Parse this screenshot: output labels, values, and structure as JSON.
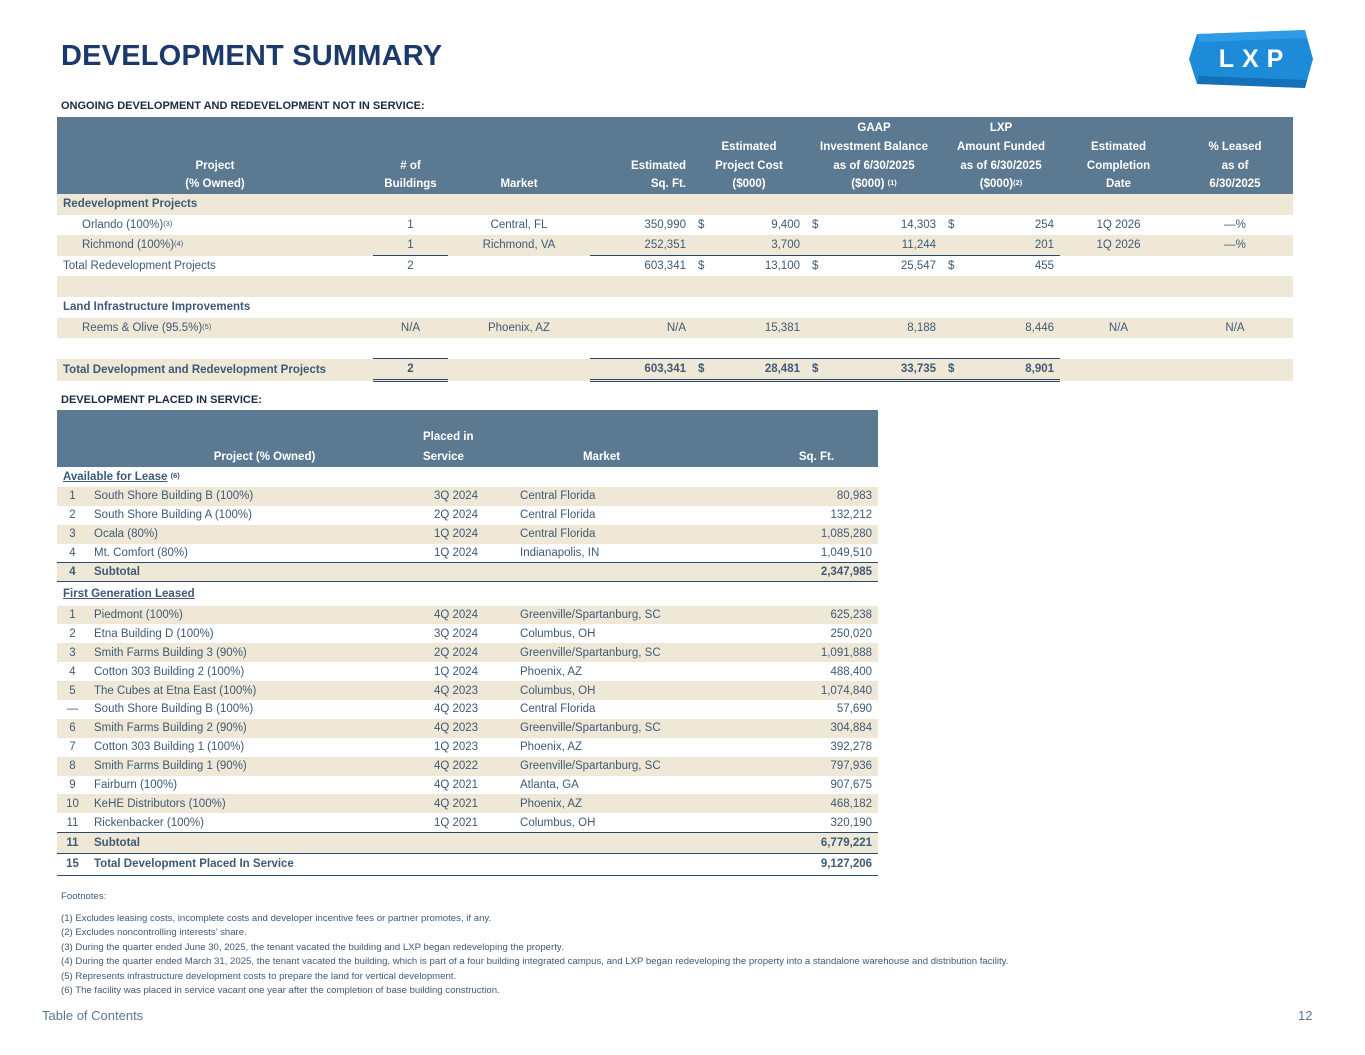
{
  "page": {
    "title": "DEVELOPMENT SUMMARY",
    "logo_text": "LXP",
    "brand_color": "#1e8bd8",
    "header_color": "#5b7a91",
    "row_shade": "#efe8d6"
  },
  "ongoing": {
    "section_label": "ONGOING DEVELOPMENT AND REDEVELOPMENT NOT IN SERVICE:",
    "headers": {
      "project_l1": "Project",
      "project_l2": "(% Owned)",
      "buildings_l1": "# of",
      "buildings_l2": "Buildings",
      "market": "Market",
      "sqft_l1": "Estimated",
      "sqft_l2": "Sq. Ft.",
      "cost_l1": "Estimated",
      "cost_l2": "Project Cost",
      "cost_l3": "($000)",
      "gaap_l1": "GAAP",
      "gaap_l2": "Investment Balance",
      "gaap_l3": "as of 6/30/2025",
      "gaap_l4": "($000)",
      "gaap_sup": "(1)",
      "lxp_l1": "LXP",
      "lxp_l2": "Amount Funded",
      "lxp_l3": "as of 6/30/2025",
      "lxp_l4": "($000)",
      "lxp_sup": "(2)",
      "completion_l1": "Estimated",
      "completion_l2": "Completion",
      "completion_l3": "Date",
      "leased_l1": "% Leased",
      "leased_l2": "as of",
      "leased_l3": "6/30/2025"
    },
    "redevelopment_label": "Redevelopment Projects",
    "rows": [
      {
        "project": "Orlando (100%)",
        "sup": "(3)",
        "buildings": "1",
        "market": "Central, FL",
        "sqft": "350,990",
        "cost_cur": "$",
        "cost": "9,400",
        "gaap_cur": "$",
        "gaap": "14,303",
        "lxp_cur": "$",
        "lxp": "254",
        "completion": "1Q 2026",
        "leased": "—%"
      },
      {
        "project": "Richmond (100%)",
        "sup": "(4)",
        "buildings": "1",
        "market": "Richmond, VA",
        "sqft": "252,351",
        "cost_cur": "",
        "cost": "3,700",
        "gaap_cur": "",
        "gaap": "11,244",
        "lxp_cur": "",
        "lxp": "201",
        "completion": "1Q 2026",
        "leased": "—%"
      }
    ],
    "total_redev": {
      "label": "Total Redevelopment Projects",
      "buildings": "2",
      "sqft": "603,341",
      "cost_cur": "$",
      "cost": "13,100",
      "gaap_cur": "$",
      "gaap": "25,547",
      "lxp_cur": "$",
      "lxp": "455"
    },
    "land_label": "Land Infrastructure Improvements",
    "land_row": {
      "project": "Reems & Olive (95.5%)",
      "sup": "(5)",
      "buildings": "N/A",
      "market": "Phoenix, AZ",
      "sqft": "N/A",
      "cost": "15,381",
      "gaap": "8,188",
      "lxp": "8,446",
      "completion": "N/A",
      "leased": "N/A"
    },
    "grand_total": {
      "label": "Total Development and Redevelopment Projects",
      "buildings": "2",
      "sqft": "603,341",
      "cost_cur": "$",
      "cost": "28,481",
      "gaap_cur": "$",
      "gaap": "33,735",
      "lxp_cur": "$",
      "lxp": "8,901"
    }
  },
  "placed": {
    "section_label": "DEVELOPMENT PLACED IN SERVICE:",
    "headers": {
      "project": "Project (% Owned)",
      "placed_l1": "Placed in",
      "placed_l2": "Service",
      "market": "Market",
      "sqft": "Sq. Ft."
    },
    "available_label": "Available for Lease",
    "available_sup": "(6)",
    "available_rows": [
      {
        "n": "1",
        "project": "South Shore Building B (100%)",
        "placed": "3Q 2024",
        "market": "Central Florida",
        "sqft": "80,983"
      },
      {
        "n": "2",
        "project": "South Shore Building A (100%)",
        "placed": "2Q 2024",
        "market": "Central Florida",
        "sqft": "132,212"
      },
      {
        "n": "3",
        "project": "Ocala (80%)",
        "placed": "1Q 2024",
        "market": "Central Florida",
        "sqft": "1,085,280"
      },
      {
        "n": "4",
        "project": "Mt. Comfort (80%)",
        "placed": "1Q 2024",
        "market": "Indianapolis, IN",
        "sqft": "1,049,510"
      }
    ],
    "available_subtotal": {
      "n": "4",
      "label": "Subtotal",
      "sqft": "2,347,985"
    },
    "first_gen_label": "First Generation Leased",
    "first_gen_rows": [
      {
        "n": "1",
        "project": "Piedmont (100%)",
        "placed": "4Q 2024",
        "market": "Greenville/Spartanburg, SC",
        "sqft": "625,238"
      },
      {
        "n": "2",
        "project": "Etna Building D (100%)",
        "placed": "3Q 2024",
        "market": "Columbus, OH",
        "sqft": "250,020"
      },
      {
        "n": "3",
        "project": "Smith Farms Building 3 (90%)",
        "placed": "2Q 2024",
        "market": "Greenville/Spartanburg, SC",
        "sqft": "1,091,888"
      },
      {
        "n": "4",
        "project": "Cotton 303 Building 2 (100%)",
        "placed": "1Q 2024",
        "market": "Phoenix, AZ",
        "sqft": "488,400"
      },
      {
        "n": "5",
        "project": "The Cubes at Etna East (100%)",
        "placed": "4Q 2023",
        "market": "Columbus, OH",
        "sqft": "1,074,840"
      },
      {
        "n": "—",
        "project": "South Shore Building B (100%)",
        "placed": "4Q 2023",
        "market": "Central Florida",
        "sqft": "57,690"
      },
      {
        "n": "6",
        "project": "Smith Farms Building 2 (90%)",
        "placed": "4Q 2023",
        "market": "Greenville/Spartanburg, SC",
        "sqft": "304,884"
      },
      {
        "n": "7",
        "project": "Cotton 303 Building 1 (100%)",
        "placed": "1Q 2023",
        "market": "Phoenix, AZ",
        "sqft": "392,278"
      },
      {
        "n": "8",
        "project": "Smith Farms Building 1 (90%)",
        "placed": "4Q 2022",
        "market": "Greenville/Spartanburg, SC",
        "sqft": "797,936"
      },
      {
        "n": "9",
        "project": "Fairburn (100%)",
        "placed": "4Q 2021",
        "market": "Atlanta, GA",
        "sqft": "907,675"
      },
      {
        "n": "10",
        "project": "KeHE Distributors (100%)",
        "placed": "4Q 2021",
        "market": "Phoenix, AZ",
        "sqft": "468,182"
      },
      {
        "n": "11",
        "project": "Rickenbacker (100%)",
        "placed": "1Q 2021",
        "market": "Columbus, OH",
        "sqft": "320,190"
      }
    ],
    "first_gen_subtotal": {
      "n": "11",
      "label": "Subtotal",
      "sqft": "6,779,221"
    },
    "total": {
      "n": "15",
      "label": "Total Development Placed In Service",
      "sqft": "9,127,206"
    }
  },
  "footnotes": {
    "heading": "Footnotes:",
    "items": [
      "(1) Excludes leasing costs, incomplete costs and developer incentive fees or partner promotes, if any.",
      "(2) Excludes noncontrolling interests’ share.",
      "(3) During the quarter ended June 30, 2025, the tenant vacated the building and LXP began redeveloping the property.",
      "(4) During the quarter ended March 31, 2025, the tenant vacated the building, which is part of a four building integrated campus, and LXP began redeveloping the property into a standalone warehouse and distribution facility.",
      "(5) Represents infrastructure development costs to prepare the land for vertical development.",
      "(6) The facility was placed in service vacant one year after the completion of base building construction."
    ]
  },
  "footer": {
    "toc_label": "Table of Contents",
    "page_number": "12"
  }
}
